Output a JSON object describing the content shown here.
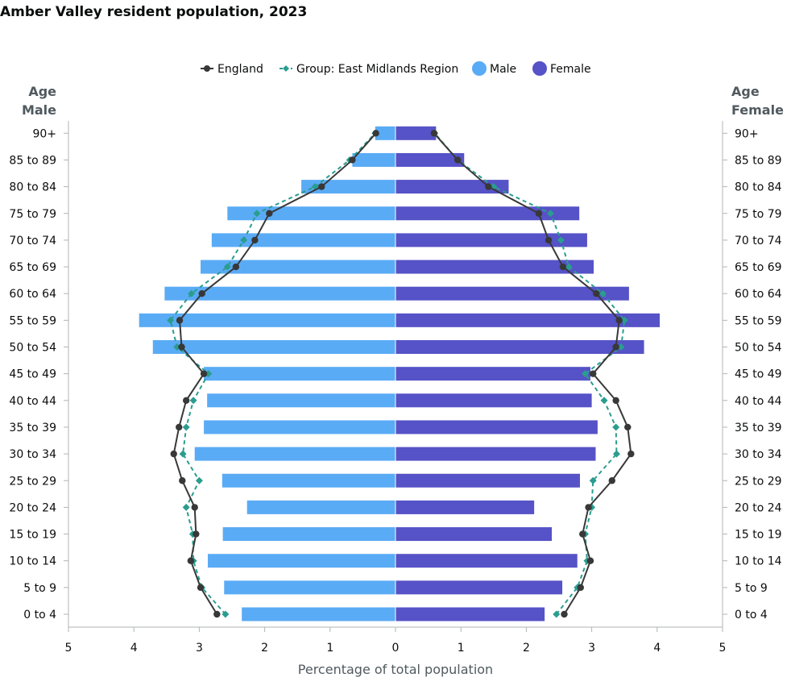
{
  "chart_data": {
    "type": "bar",
    "title": "Amber Valley resident population, 2023",
    "xlabel": "Percentage of total population",
    "y_left_title": [
      "Age",
      "Male"
    ],
    "y_right_title": [
      "Age",
      "Female"
    ],
    "xlim": [
      -5,
      5
    ],
    "x_ticks": [
      -5,
      -4,
      -3,
      -2,
      -1,
      0,
      1,
      2,
      3,
      4,
      5
    ],
    "x_tick_labels": [
      "5",
      "4",
      "3",
      "2",
      "1",
      "0",
      "1",
      "2",
      "3",
      "4",
      "5"
    ],
    "categories": [
      "0 to 4",
      "5 to 9",
      "10 to 14",
      "15 to 19",
      "20 to 24",
      "25 to 29",
      "30 to 34",
      "35 to 39",
      "40 to 44",
      "45 to 49",
      "50 to 54",
      "55 to 59",
      "60 to 64",
      "65 to 69",
      "70 to 74",
      "75 to 79",
      "80 to 84",
      "85 to 89",
      "90+"
    ],
    "legend_position": "top-center",
    "grid": false,
    "colors": {
      "male": "#5aabf5",
      "female": "#5652c7",
      "england": "#383838",
      "region": "#2a9d8f",
      "axis": "#b1b4b6"
    },
    "legend": [
      {
        "label": "England",
        "kind": "line-dot",
        "color": "#383838"
      },
      {
        "label": "Group: East Midlands Region",
        "kind": "dashed-diamond",
        "color": "#2a9d8f"
      },
      {
        "label": "Male",
        "kind": "circle",
        "color": "#5aabf5"
      },
      {
        "label": "Female",
        "kind": "circle",
        "color": "#5652c7"
      }
    ],
    "series": [
      {
        "name": "Male",
        "values": [
          2.35,
          2.62,
          2.87,
          2.64,
          2.27,
          2.65,
          3.07,
          2.93,
          2.88,
          2.93,
          3.71,
          3.92,
          3.53,
          2.98,
          2.81,
          2.57,
          1.44,
          0.66,
          0.31
        ]
      },
      {
        "name": "Female",
        "values": [
          2.28,
          2.55,
          2.78,
          2.39,
          2.12,
          2.82,
          3.06,
          3.09,
          3.0,
          2.98,
          3.8,
          4.04,
          3.57,
          3.03,
          2.93,
          2.81,
          1.73,
          1.05,
          0.62
        ]
      },
      {
        "name": "England",
        "side": "male",
        "values": [
          2.73,
          2.98,
          3.13,
          3.05,
          3.07,
          3.26,
          3.39,
          3.31,
          3.2,
          2.93,
          3.27,
          3.3,
          2.96,
          2.44,
          2.15,
          1.93,
          1.13,
          0.66,
          0.3
        ]
      },
      {
        "name": "England",
        "side": "female",
        "values": [
          2.58,
          2.83,
          2.98,
          2.86,
          2.95,
          3.31,
          3.6,
          3.55,
          3.37,
          3.02,
          3.37,
          3.42,
          3.07,
          2.56,
          2.34,
          2.19,
          1.42,
          0.95,
          0.59
        ]
      },
      {
        "name": "Group: East Midlands Region",
        "side": "male",
        "values": [
          2.6,
          2.96,
          3.09,
          3.1,
          3.2,
          3.0,
          3.25,
          3.2,
          3.09,
          2.86,
          3.34,
          3.44,
          3.12,
          2.57,
          2.32,
          2.12,
          1.23,
          0.7,
          0.31
        ]
      },
      {
        "name": "Group: East Midlands Region",
        "side": "female",
        "values": [
          2.46,
          2.78,
          2.93,
          2.9,
          3.0,
          3.02,
          3.38,
          3.37,
          3.19,
          2.9,
          3.45,
          3.5,
          3.17,
          2.65,
          2.53,
          2.37,
          1.5,
          0.95,
          0.6
        ]
      }
    ]
  }
}
